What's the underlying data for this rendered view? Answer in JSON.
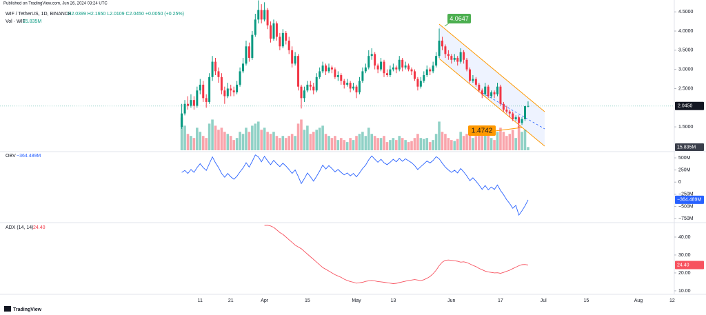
{
  "header": "Published on TradingView.com, Jun 26, 2024 03:24 UTC",
  "footer": "TradingView",
  "chart_data": [
    {
      "type": "candlestick",
      "title": "WIF / TetherUS, 1D, BINANCE",
      "ohlc_legend": "O2.0399 H2.1650 L2.0109 C2.0450 +0.0050 (+0.25%)",
      "up_color": "#089981",
      "down_color": "#f23645",
      "last_label": "2.0450",
      "annotations": [
        "4.0647",
        "1.4742"
      ],
      "xlim": [
        -59.3,
        160.7
      ],
      "xticks": [
        {
          "value": 6,
          "label": "11"
        },
        {
          "value": 16,
          "label": "21"
        },
        {
          "value": 27,
          "label": "Apr"
        },
        {
          "value": 41,
          "label": "15"
        },
        {
          "value": 57,
          "label": "May"
        },
        {
          "value": 69,
          "label": "13"
        },
        {
          "value": 88,
          "label": "Jun"
        },
        {
          "value": 104,
          "label": "17"
        },
        {
          "value": 118,
          "label": "Jul"
        },
        {
          "value": 132,
          "label": "15"
        },
        {
          "value": 149,
          "label": "Aug"
        },
        {
          "value": 160,
          "label": "12"
        }
      ],
      "ylim": [
        0.89,
        4.63
      ],
      "yticks": [
        {
          "value": 4.5,
          "label": "4.5000"
        },
        {
          "value": 4,
          "label": "4.0000"
        },
        {
          "value": 3.5,
          "label": "3.5000"
        },
        {
          "value": 3,
          "label": "3.0000"
        },
        {
          "value": 2.5,
          "label": "2.5000"
        },
        {
          "value": 1.5,
          "label": "1.5000"
        }
      ],
      "candles": [
        [
          1.5,
          2.1,
          1.45,
          1.85
        ],
        [
          1.85,
          2.2,
          1.8,
          2.1
        ],
        [
          2.1,
          2.3,
          1.95,
          2.05
        ],
        [
          2.05,
          2.35,
          2.0,
          2.2
        ],
        [
          2.2,
          2.3,
          1.95,
          2.05
        ],
        [
          2.05,
          2.55,
          2.0,
          2.45
        ],
        [
          2.45,
          2.75,
          2.35,
          2.6
        ],
        [
          2.6,
          2.7,
          2.15,
          2.25
        ],
        [
          2.25,
          2.35,
          2.0,
          2.15
        ],
        [
          2.15,
          2.9,
          2.1,
          2.8
        ],
        [
          2.8,
          3.35,
          2.7,
          3.2
        ],
        [
          3.2,
          3.3,
          2.85,
          2.95
        ],
        [
          2.95,
          3.05,
          2.65,
          2.8
        ],
        [
          2.8,
          2.9,
          2.35,
          2.45
        ],
        [
          2.45,
          2.55,
          2.1,
          2.3
        ],
        [
          2.3,
          2.65,
          2.25,
          2.5
        ],
        [
          2.5,
          2.6,
          2.3,
          2.45
        ],
        [
          2.45,
          2.55,
          2.3,
          2.4
        ],
        [
          2.4,
          2.7,
          2.35,
          2.6
        ],
        [
          2.6,
          3.05,
          2.55,
          2.95
        ],
        [
          2.95,
          3.3,
          2.9,
          3.15
        ],
        [
          3.15,
          3.75,
          3.1,
          3.6
        ],
        [
          3.6,
          3.7,
          3.2,
          3.3
        ],
        [
          3.3,
          4.0,
          3.25,
          3.9
        ],
        [
          3.9,
          4.45,
          3.85,
          4.3
        ],
        [
          4.3,
          4.8,
          4.2,
          4.55
        ],
        [
          4.55,
          4.7,
          4.2,
          4.3
        ],
        [
          4.3,
          4.75,
          4.25,
          4.55
        ],
        [
          4.55,
          4.6,
          4.05,
          4.15
        ],
        [
          4.15,
          4.25,
          3.7,
          3.8
        ],
        [
          3.8,
          4.3,
          3.75,
          4.2
        ],
        [
          4.2,
          4.25,
          3.75,
          3.85
        ],
        [
          3.85,
          3.95,
          3.5,
          3.6
        ],
        [
          3.6,
          4.05,
          3.55,
          3.95
        ],
        [
          3.95,
          4.0,
          3.65,
          3.75
        ],
        [
          3.75,
          3.85,
          3.4,
          3.5
        ],
        [
          3.5,
          3.6,
          3.05,
          3.15
        ],
        [
          3.15,
          3.45,
          3.1,
          3.35
        ],
        [
          3.35,
          3.4,
          2.45,
          2.55
        ],
        [
          2.55,
          2.6,
          1.98,
          2.25
        ],
        [
          2.25,
          2.55,
          2.15,
          2.45
        ],
        [
          2.45,
          2.7,
          2.4,
          2.6
        ],
        [
          2.6,
          2.7,
          2.45,
          2.55
        ],
        [
          2.55,
          2.65,
          2.35,
          2.45
        ],
        [
          2.45,
          2.9,
          2.4,
          2.8
        ],
        [
          2.8,
          3.05,
          2.75,
          2.95
        ],
        [
          2.95,
          3.2,
          2.9,
          3.1
        ],
        [
          3.1,
          3.15,
          2.85,
          2.95
        ],
        [
          2.95,
          3.15,
          2.9,
          3.05
        ],
        [
          3.05,
          3.1,
          2.9,
          3.0
        ],
        [
          3.0,
          3.05,
          2.75,
          2.8
        ],
        [
          2.8,
          2.95,
          2.7,
          2.85
        ],
        [
          2.85,
          2.9,
          2.6,
          2.7
        ],
        [
          2.7,
          2.75,
          2.5,
          2.6
        ],
        [
          2.6,
          2.75,
          2.55,
          2.65
        ],
        [
          2.65,
          2.7,
          2.4,
          2.5
        ],
        [
          2.5,
          2.65,
          2.45,
          2.55
        ],
        [
          2.55,
          2.6,
          2.25,
          2.4
        ],
        [
          2.4,
          2.8,
          2.35,
          2.7
        ],
        [
          2.7,
          3.05,
          2.65,
          2.95
        ],
        [
          2.95,
          3.15,
          2.9,
          3.05
        ],
        [
          3.05,
          3.5,
          3.0,
          3.35
        ],
        [
          3.35,
          3.55,
          3.25,
          3.4
        ],
        [
          3.4,
          3.45,
          3.0,
          3.1
        ],
        [
          3.1,
          3.15,
          2.9,
          3.0
        ],
        [
          3.0,
          3.3,
          2.95,
          3.2
        ],
        [
          3.2,
          3.25,
          2.8,
          2.9
        ],
        [
          2.9,
          3.0,
          2.8,
          2.85
        ],
        [
          2.85,
          3.1,
          2.8,
          3.0
        ],
        [
          3.0,
          3.15,
          2.95,
          3.05
        ],
        [
          3.05,
          3.1,
          2.9,
          3.0
        ],
        [
          3.0,
          3.35,
          2.95,
          3.25
        ],
        [
          3.25,
          3.3,
          2.95,
          3.05
        ],
        [
          3.05,
          3.2,
          3.0,
          3.1
        ],
        [
          3.1,
          3.15,
          2.95,
          3.0
        ],
        [
          3.0,
          3.05,
          2.85,
          2.95
        ],
        [
          2.95,
          3.0,
          2.7,
          2.75
        ],
        [
          2.75,
          2.8,
          2.45,
          2.55
        ],
        [
          2.55,
          2.8,
          2.5,
          2.7
        ],
        [
          2.7,
          2.95,
          2.65,
          2.85
        ],
        [
          2.85,
          3.1,
          2.8,
          3.0
        ],
        [
          3.0,
          3.05,
          2.85,
          2.95
        ],
        [
          2.95,
          3.2,
          2.9,
          3.1
        ],
        [
          3.1,
          3.45,
          3.05,
          3.35
        ],
        [
          3.35,
          4.0647,
          3.3,
          3.75
        ],
        [
          3.75,
          3.85,
          3.5,
          3.6
        ],
        [
          3.6,
          3.65,
          3.3,
          3.4
        ],
        [
          3.4,
          3.5,
          3.25,
          3.35
        ],
        [
          3.35,
          3.4,
          3.15,
          3.25
        ],
        [
          3.25,
          3.4,
          3.2,
          3.3
        ],
        [
          3.3,
          3.35,
          3.1,
          3.2
        ],
        [
          3.2,
          3.55,
          3.15,
          3.45
        ],
        [
          3.45,
          3.5,
          3.15,
          3.25
        ],
        [
          3.25,
          3.3,
          2.95,
          3.0
        ],
        [
          3.0,
          3.05,
          2.65,
          2.7
        ],
        [
          2.7,
          2.85,
          2.65,
          2.75
        ],
        [
          2.75,
          2.8,
          2.55,
          2.6
        ],
        [
          2.6,
          2.65,
          2.4,
          2.45
        ],
        [
          2.45,
          2.5,
          2.25,
          2.35
        ],
        [
          2.35,
          2.65,
          2.3,
          2.55
        ],
        [
          2.55,
          2.6,
          2.25,
          2.3
        ],
        [
          2.3,
          2.45,
          2.25,
          2.4
        ],
        [
          2.4,
          2.45,
          2.25,
          2.35
        ],
        [
          2.35,
          2.65,
          2.3,
          2.55
        ],
        [
          2.55,
          2.6,
          2.05,
          2.1
        ],
        [
          2.1,
          2.15,
          1.9,
          1.95
        ],
        [
          1.95,
          2.05,
          1.85,
          1.9
        ],
        [
          1.9,
          1.95,
          1.75,
          1.85
        ],
        [
          1.85,
          1.9,
          1.65,
          1.7
        ],
        [
          1.7,
          1.8,
          1.65,
          1.75
        ],
        [
          1.75,
          1.8,
          1.4742,
          1.6
        ],
        [
          1.6,
          1.75,
          1.55,
          1.7
        ],
        [
          1.7,
          2.05,
          1.65,
          2.0399
        ],
        [
          2.0399,
          2.165,
          2.0109,
          2.045
        ]
      ]
    },
    {
      "type": "bar",
      "name": "Vol · WIF",
      "value_label": "15.835M",
      "ylim": [
        0,
        700
      ],
      "values": [
        160,
        120,
        80,
        70,
        60,
        110,
        90,
        70,
        60,
        130,
        150,
        120,
        100,
        110,
        90,
        80,
        70,
        50,
        60,
        90,
        80,
        110,
        90,
        120,
        130,
        140,
        100,
        110,
        90,
        80,
        90,
        70,
        60,
        70,
        60,
        70,
        80,
        70,
        130,
        150,
        100,
        120,
        80,
        90,
        100,
        110,
        120,
        80,
        70,
        60,
        70,
        50,
        60,
        50,
        40,
        60,
        50,
        70,
        80,
        90,
        70,
        110,
        80,
        70,
        60,
        60,
        70,
        40,
        50,
        60,
        50,
        70,
        60,
        50,
        40,
        45,
        60,
        80,
        60,
        55,
        60,
        40,
        50,
        80,
        140,
        90,
        80,
        60,
        50,
        45,
        55,
        90,
        70,
        80,
        100,
        60,
        70,
        80,
        90,
        80,
        90,
        60,
        50,
        90,
        110,
        90,
        70,
        80,
        100,
        60,
        120,
        90,
        100,
        15.835
      ]
    },
    {
      "type": "line",
      "name": "OBV",
      "value_label": "−364.489M",
      "color": "#2962ff",
      "ylim": [
        -821,
        600
      ],
      "yticks": [
        {
          "value": 500,
          "label": "500M"
        },
        {
          "value": 250,
          "label": "250M"
        },
        0,
        {
          "value": -250,
          "label": "−250M"
        },
        {
          "value": -500,
          "label": "−500M"
        },
        {
          "value": -750,
          "label": "−750M"
        }
      ],
      "values": [
        200,
        240,
        180,
        260,
        200,
        300,
        380,
        300,
        240,
        380,
        520,
        400,
        300,
        180,
        100,
        180,
        110,
        60,
        120,
        210,
        290,
        400,
        310,
        430,
        560,
        520,
        420,
        530,
        440,
        360,
        450,
        380,
        320,
        390,
        330,
        260,
        180,
        250,
        120,
        -30,
        70,
        190,
        110,
        20,
        120,
        230,
        350,
        270,
        340,
        280,
        210,
        260,
        200,
        150,
        190,
        130,
        180,
        110,
        190,
        280,
        350,
        460,
        540,
        470,
        410,
        470,
        400,
        360,
        410,
        470,
        420,
        490,
        430,
        480,
        440,
        400,
        340,
        260,
        320,
        375,
        435,
        395,
        445,
        525,
        480,
        390,
        310,
        250,
        200,
        245,
        190,
        280,
        210,
        130,
        30,
        90,
        20,
        -60,
        -150,
        -70,
        -160,
        -100,
        -150,
        -60,
        -170,
        -260,
        -360,
        -440,
        -540,
        -480,
        -680,
        -590,
        -490,
        -364.489
      ]
    },
    {
      "type": "line",
      "name": "ADX (14, 14)",
      "value_label": "24.40",
      "color": "#f7525f",
      "ylim": [
        6.9,
        46.9
      ],
      "yticks": [
        {
          "value": 40,
          "label": "40.00"
        },
        {
          "value": 30,
          "label": "30.00"
        },
        {
          "value": 20,
          "label": "20.00"
        },
        {
          "value": 10,
          "label": "10.00"
        }
      ],
      "values": [
        null,
        null,
        null,
        null,
        null,
        null,
        null,
        null,
        null,
        null,
        null,
        null,
        null,
        null,
        null,
        null,
        null,
        null,
        null,
        null,
        null,
        null,
        null,
        null,
        null,
        null,
        null,
        46.5,
        46.6,
        46.2,
        45.4,
        44.0,
        42.5,
        41.5,
        40.0,
        38.5,
        37.0,
        35.5,
        34.5,
        33.5,
        32.0,
        30.5,
        29.0,
        27.5,
        26.0,
        24.5,
        23.0,
        22.0,
        21.0,
        20.0,
        19.0,
        18.3,
        17.5,
        16.5,
        15.8,
        15.2,
        14.8,
        14.3,
        14.5,
        14.8,
        15.3,
        15.6,
        15.8,
        15.5,
        15.2,
        15.0,
        14.8,
        14.5,
        14.3,
        14.0,
        14.2,
        14.6,
        15.0,
        15.4,
        15.8,
        16.0,
        16.3,
        16.0,
        15.7,
        16.2,
        17.0,
        18.0,
        19.5,
        21.5,
        24.0,
        26.0,
        27.0,
        27.2,
        27.0,
        26.8,
        26.5,
        26.0,
        26.2,
        25.8,
        25.0,
        24.2,
        23.5,
        22.5,
        21.8,
        21.0,
        20.5,
        20.3,
        20.0,
        20.1,
        19.8,
        20.3,
        20.9,
        21.5,
        22.4,
        23.2,
        24.0,
        24.6,
        24.7,
        24.4
      ]
    }
  ]
}
